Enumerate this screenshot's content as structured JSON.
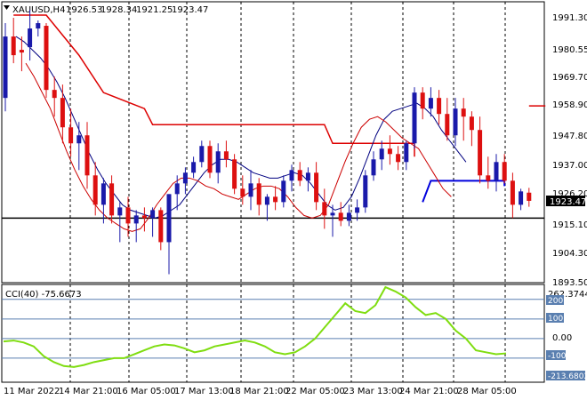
{
  "header": {
    "symbol_timeframe": "XAUUSD,H4",
    "open": "1926.53",
    "high": "1928.34",
    "low": "1921.25",
    "close": "1923.47"
  },
  "price_axis": {
    "ticks": [
      "1991.30",
      "1980.55",
      "1969.70",
      "1958.90",
      "1947.80",
      "1937.00",
      "1926.20",
      "1915.10",
      "1904.30",
      "1893.50"
    ],
    "current_price_label": "1923.47"
  },
  "cci_panel": {
    "title": "CCI(40) -75.6673",
    "axis_ticks": [
      "262.3744",
      "200",
      "100",
      "0.00",
      "-100",
      "-213.6802"
    ]
  },
  "time_axis": {
    "labels": [
      "11 Mar 2022",
      "14 Mar 21:00",
      "16 Mar 05:00",
      "17 Mar 13:00",
      "18 Mar 21:00",
      "22 Mar 05:00",
      "23 Mar 13:00",
      "24 Mar 21:00",
      "28 Mar 05:00"
    ]
  },
  "colors": {
    "bull": "#1a1aaa",
    "bear": "#dd1010",
    "ma_blue": "#000080",
    "ma_red": "#cc0000",
    "stop_red": "#dd0000",
    "stop_blue": "#0000dd",
    "cci": "#7fdd10",
    "cci_level": "#5a7fb0"
  },
  "chart_data": {
    "type": "candlestick",
    "price_range": [
      1893.5,
      1997
    ],
    "candles": [
      [
        1962,
        1990,
        1957,
        1985
      ],
      [
        1985,
        1992,
        1975,
        1978
      ],
      [
        1980,
        1985,
        1972,
        1979
      ],
      [
        1981,
        1995,
        1976,
        1988
      ],
      [
        1988,
        1991,
        1985,
        1990
      ],
      [
        1989,
        1990,
        1962,
        1965
      ],
      [
        1965,
        1970,
        1955,
        1962
      ],
      [
        1962,
        1967,
        1945,
        1951
      ],
      [
        1951,
        1958,
        1940,
        1945
      ],
      [
        1945,
        1953,
        1935,
        1948
      ],
      [
        1948,
        1953,
        1928,
        1933
      ],
      [
        1933,
        1938,
        1918,
        1922
      ],
      [
        1922,
        1932,
        1915,
        1930
      ],
      [
        1930,
        1933,
        1915,
        1918
      ],
      [
        1918,
        1923,
        1908,
        1921
      ],
      [
        1921,
        1925,
        1910,
        1915
      ],
      [
        1915,
        1920,
        1908,
        1918
      ],
      [
        1918,
        1921,
        1912,
        1917
      ],
      [
        1917,
        1921,
        1910,
        1920
      ],
      [
        1920,
        1921,
        1905,
        1908
      ],
      [
        1908,
        1926,
        1896,
        1926
      ],
      [
        1926,
        1933,
        1920,
        1930
      ],
      [
        1930,
        1936,
        1926,
        1934
      ],
      [
        1934,
        1940,
        1932,
        1938
      ],
      [
        1938,
        1946,
        1936,
        1944
      ],
      [
        1944,
        1946,
        1932,
        1934
      ],
      [
        1934,
        1945,
        1930,
        1942
      ],
      [
        1942,
        1946,
        1936,
        1939
      ],
      [
        1939,
        1941,
        1926,
        1928
      ],
      [
        1928,
        1933,
        1922,
        1925
      ],
      [
        1925,
        1935,
        1920,
        1930
      ],
      [
        1930,
        1932,
        1918,
        1922
      ],
      [
        1922,
        1926,
        1916,
        1925
      ],
      [
        1925,
        1929,
        1920,
        1923
      ],
      [
        1923,
        1933,
        1921,
        1931
      ],
      [
        1931,
        1937,
        1927,
        1935
      ],
      [
        1935,
        1938,
        1929,
        1931
      ],
      [
        1931,
        1936,
        1927,
        1934
      ],
      [
        1934,
        1938,
        1920,
        1923
      ],
      [
        1923,
        1928,
        1913,
        1918
      ],
      [
        1918,
        1922,
        1910,
        1919
      ],
      [
        1919,
        1923,
        1914,
        1916
      ],
      [
        1916,
        1922,
        1914,
        1919
      ],
      [
        1919,
        1924,
        1916,
        1921
      ],
      [
        1921,
        1935,
        1919,
        1933
      ],
      [
        1933,
        1942,
        1931,
        1939
      ],
      [
        1939,
        1946,
        1935,
        1943
      ],
      [
        1943,
        1948,
        1937,
        1941
      ],
      [
        1941,
        1944,
        1935,
        1938
      ],
      [
        1938,
        1946,
        1935,
        1945
      ],
      [
        1945,
        1966,
        1943,
        1964
      ],
      [
        1964,
        1966,
        1954,
        1958
      ],
      [
        1958,
        1966,
        1955,
        1962
      ],
      [
        1962,
        1965,
        1952,
        1956
      ],
      [
        1956,
        1962,
        1946,
        1948
      ],
      [
        1948,
        1962,
        1944,
        1958
      ],
      [
        1958,
        1962,
        1946,
        1955
      ],
      [
        1955,
        1957,
        1944,
        1950
      ],
      [
        1950,
        1955,
        1930,
        1933
      ],
      [
        1933,
        1940,
        1928,
        1931
      ],
      [
        1931,
        1941,
        1927,
        1938
      ],
      [
        1938,
        1941,
        1930,
        1931
      ],
      [
        1931,
        1934,
        1917,
        1922
      ],
      [
        1922,
        1928,
        1920,
        1927
      ],
      [
        1926.53,
        1928.34,
        1921.25,
        1923.47
      ]
    ],
    "cci_values": [
      -15,
      -10,
      -20,
      -40,
      -90,
      -120,
      -140,
      -145,
      -135,
      -120,
      -110,
      -100,
      -100,
      -80,
      -60,
      -40,
      -30,
      -35,
      -50,
      -70,
      -60,
      -40,
      -30,
      -20,
      -10,
      -20,
      -40,
      -70,
      -80,
      -70,
      -40,
      0,
      60,
      120,
      180,
      140,
      130,
      170,
      262,
      240,
      210,
      160,
      120,
      130,
      100,
      40,
      0,
      -60,
      -70,
      -80,
      -75.67
    ],
    "ma_blue_values": [
      1985,
      1983,
      1980,
      1977,
      1973,
      1968,
      1962,
      1955,
      1948,
      1941,
      1935,
      1930,
      1926,
      1922,
      1920,
      1919,
      1918,
      1917,
      1918,
      1920,
      1922,
      1926,
      1930,
      1934,
      1937,
      1939,
      1939,
      1938,
      1936,
      1934,
      1933,
      1932,
      1932,
      1933,
      1934,
      1933,
      1930,
      1926,
      1922,
      1920,
      1921,
      1925,
      1932,
      1940,
      1948,
      1954,
      1957,
      1958,
      1959,
      1960,
      1958,
      1955,
      1950,
      1946,
      1942,
      1938
    ],
    "ma_red_values": [
      1975,
      1970,
      1964,
      1958,
      1950,
      1942,
      1935,
      1929,
      1924,
      1920,
      1917,
      1915,
      1913,
      1912,
      1913,
      1917,
      1922,
      1926,
      1930,
      1932,
      1932,
      1931,
      1929,
      1928,
      1926,
      1925,
      1924,
      1926,
      1928,
      1929,
      1929,
      1928,
      1925,
      1921,
      1918,
      1917,
      1918,
      1922,
      1930,
      1938,
      1945,
      1951,
      1954,
      1955,
      1953,
      1950,
      1947,
      1945,
      1943,
      1938,
      1933,
      1928,
      1925
    ],
    "stop_levels": {
      "red": [
        [
          1,
          1993
        ],
        [
          5,
          1993
        ],
        [
          9,
          1978
        ],
        [
          12,
          1964
        ],
        [
          17,
          1958
        ],
        [
          18,
          1952
        ],
        [
          39,
          1952
        ],
        [
          40,
          1945
        ],
        [
          50,
          1945
        ],
        [
          50,
          1940
        ]
      ],
      "red_tail": [
        [
          64,
          1959
        ],
        [
          66,
          1959
        ]
      ],
      "blue": [
        [
          51,
          1923
        ],
        [
          52,
          1931
        ],
        [
          61,
          1931
        ],
        [
          61,
          1929
        ]
      ]
    },
    "horizontal_line": 1917.0
  }
}
